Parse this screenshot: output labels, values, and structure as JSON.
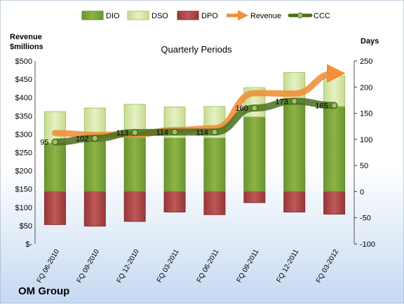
{
  "chart_data": {
    "type": "bar",
    "title": "Quarterly Periods",
    "footer_title": "OM Group",
    "left_axis_label": [
      "Revenue",
      "$millions"
    ],
    "right_axis_label": "Days",
    "categories": [
      "FQ 06-2010",
      "FQ 09-2010",
      "FQ 12-2010",
      "FQ 03-2011",
      "FQ 06-2011",
      "FQ 09-2011",
      "FQ 12-2011",
      "FQ 03-2012"
    ],
    "left_ticks": [
      "$-",
      "$50",
      "$100",
      "$150",
      "$200",
      "$250",
      "$300",
      "$350",
      "$400",
      "$450",
      "$500"
    ],
    "left_range": [
      0,
      500
    ],
    "right_ticks": [
      "-100",
      "-50",
      "0",
      "50",
      "100",
      "150",
      "200",
      "250"
    ],
    "right_range": [
      -100,
      250
    ],
    "legend": [
      "DIO",
      "DSO",
      "DPO",
      "Revenue",
      "CCC"
    ],
    "legend_placement": "top",
    "series": [
      {
        "name": "DIO",
        "axis": "right",
        "values": [
          93,
          97,
          104,
          103,
          103,
          143,
          170,
          163
        ]
      },
      {
        "name": "DSO",
        "axis": "right",
        "values": [
          60,
          63,
          63,
          59,
          60,
          56,
          58,
          58
        ]
      },
      {
        "name": "DPO",
        "axis": "right",
        "values": [
          -63,
          -66,
          -57,
          -39,
          -44,
          -21,
          -39,
          -43
        ]
      },
      {
        "name": "Revenue",
        "axis": "left",
        "values": [
          303,
          298,
          299,
          311,
          316,
          412,
          411,
          466
        ]
      },
      {
        "name": "CCC",
        "axis": "right",
        "values": [
          95,
          102,
          113,
          114,
          114,
          160,
          173,
          165
        ]
      }
    ],
    "ccc_labels": [
      "95",
      "102",
      "113",
      "114",
      "114",
      "160",
      "173",
      "165"
    ],
    "colors": {
      "DIO": "#7fa83c",
      "DIO_edge": "#5e8a22",
      "DSO": "#d8e8a8",
      "DSO_edge": "#a9c46a",
      "DPO": "#b04848",
      "DPO_edge": "#8a2e2e",
      "Revenue": "#f0903a",
      "CCC": "#4a6e1e",
      "CCC_marker": "#a8c060",
      "background_top": "#ffffff",
      "background_bottom": "#c9dcf3"
    }
  }
}
